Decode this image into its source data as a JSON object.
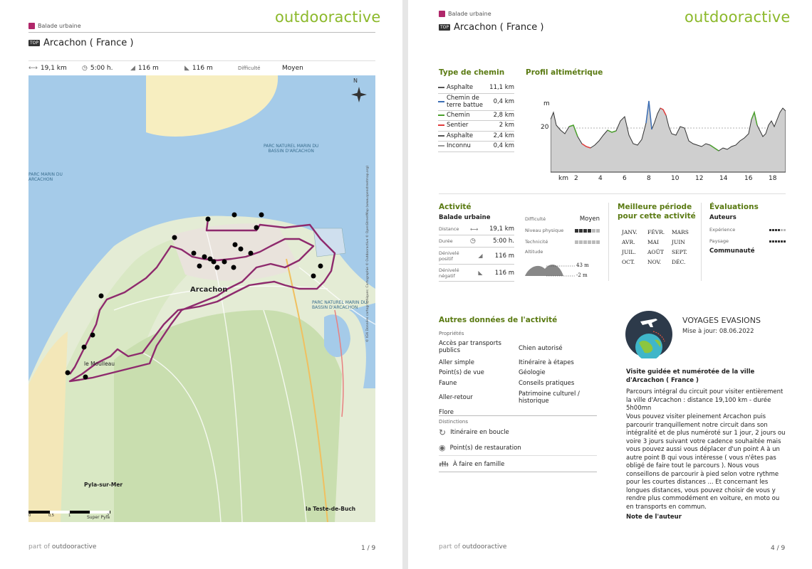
{
  "brand": "outdooractive",
  "page1": {
    "category": "Balade urbaine",
    "title": "Arcachon ( France )",
    "stats": {
      "distance": "19,1 km",
      "duration": "5:00 h.",
      "ascent": "116 m",
      "descent": "116 m",
      "difficulty_label": "Difficulté",
      "difficulty_value": "Moyen"
    },
    "map": {
      "north": "N",
      "labels": {
        "park1": "PARC NATUREL MARIN DU",
        "park2": "BASSIN D'ARCACHON",
        "park3": "PARC MARIN DU",
        "park4": "ARCACHON",
        "park5": "PARC NATUREL MARIN DU",
        "park6": "BASSIN D'ARCACHON",
        "city": "Arcachon",
        "moulleau": "le Moulleau",
        "pyla": "Pyla-sur-Mer",
        "teste": "la Teste-de-Buch",
        "scale0": "0",
        "scale1": "0,5",
        "scale2": "1",
        "scale3": "2",
        "superpyla": "Super Pyla",
        "credit": "© IGN Données cartographiques: Cartographie © Outdooractive © OpenStreetMap (www.openstreetmap.org)"
      }
    },
    "footer_prefix": "part of",
    "footer_brand": "outdooractive",
    "page_number": "1 / 9"
  },
  "page2": {
    "category": "Balade urbaine",
    "top_badge": "TOP",
    "title": "Arcachon ( France )",
    "type_chemin": {
      "heading": "Type de chemin",
      "rows": [
        {
          "name": "Asphalte",
          "value": "11,1 km",
          "color": "#555555"
        },
        {
          "name": "Chemin de terre battue",
          "value": "0,4 km",
          "color": "#3d6fb5"
        },
        {
          "name": "Chemin",
          "value": "2,8 km",
          "color": "#4aa02c"
        },
        {
          "name": "Sentier",
          "value": "2 km",
          "color": "#e03c3c"
        },
        {
          "name": "Asphalte",
          "value": "2,4 km",
          "color": "#555555"
        },
        {
          "name": "Inconnu",
          "value": "0,4 km",
          "color": "#999999"
        }
      ]
    },
    "profile": {
      "heading": "Profil altimétrique",
      "y_unit": "m",
      "y_tick": "20",
      "x_unit": "km",
      "x_ticks": [
        "2",
        "4",
        "6",
        "8",
        "10",
        "12",
        "14",
        "16",
        "18"
      ]
    },
    "activite": {
      "heading": "Activité",
      "subheading": "Balade urbaine",
      "rows": [
        {
          "label": "Distance",
          "value": "19,1  km"
        },
        {
          "label": "Durée",
          "value": "5:00  h."
        },
        {
          "label": "Dénivelé positif",
          "value": "116  m"
        },
        {
          "label": "Dénivelé négatif",
          "value": "116  m"
        }
      ],
      "difficulty_label": "Difficulté",
      "difficulty_value": "Moyen",
      "physical_label": "Niveau physique",
      "physical_level": 4,
      "technical_label": "Technicité",
      "technical_level": 0,
      "altitude_label": "Altitude",
      "alt_max": "43 m",
      "alt_min": "-2 m"
    },
    "periode": {
      "heading1": "Meilleure période",
      "heading2": "pour cette activité",
      "months": [
        "JANV.",
        "FÉVR.",
        "MARS",
        "AVR.",
        "MAI",
        "JUIN",
        "JUIL.",
        "AOÛT",
        "SEPT.",
        "OCT.",
        "NOV.",
        "DÉC."
      ]
    },
    "evaluations": {
      "heading": "Évaluations",
      "auteurs": "Auteurs",
      "experience_label": "Expérience",
      "experience_level": 4,
      "paysage_label": "Paysage",
      "paysage_level": 6,
      "communaute": "Communauté"
    },
    "autres": {
      "heading": "Autres données de l'activité",
      "proprietes_label": "Propriétés",
      "props_left": [
        "Accès par transports publics",
        "Aller simple",
        "Point(s) de vue",
        "Faune",
        "Aller-retour",
        "Flore"
      ],
      "props_right": [
        "Chien autorisé",
        "Itinéraire à étapes",
        "Géologie",
        "Conseils pratiques",
        "Patrimoine culturel / historique"
      ],
      "distinctions_label": "Distinctions",
      "distinctions": [
        "Itinéraire en boucle",
        "Point(s) de restauration",
        "À faire en famille"
      ]
    },
    "author": {
      "name": "VOYAGES EVASIONS",
      "updated": "Mise à jour: 08.06.2022",
      "heading": "Visite guidée et numérotée de la ville d'Arcachon ( France )",
      "para1": "Parcours intégral du circuit pour visiter entièrement la ville d'Arcachon : distance 19,100 km - durée 5h00mn",
      "para2": "Vous pouvez visiter pleinement Arcachon puis parcourir tranquillement notre circuit dans son intégralité et de plus numéroté sur 1 jour, 2 jours ou voire 3 jours suivant votre cadence souhaitée mais vous pouvez aussi vous déplacer d'un point A à un autre point B qui vous intéresse ( vous n'êtes pas obligé de faire tout le parcours ). Nous vous conseillons de parcourir à pied selon votre rythme pour les courtes distances ... Et concernant les longues distances, vous pouvez choisir de vous y rendre plus commodément en voiture, en moto ou en transports en commun.",
      "note_label": "Note de l'auteur"
    },
    "footer_prefix": "part of",
    "footer_brand": "outdooractive",
    "page_number": "4 / 9"
  }
}
